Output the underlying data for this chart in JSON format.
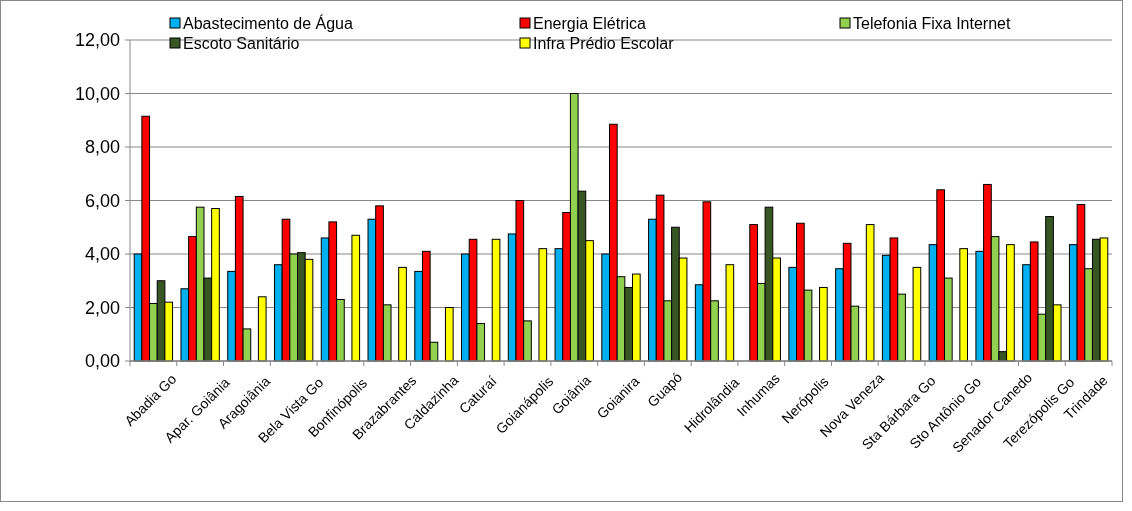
{
  "chart_data": {
    "type": "bar",
    "categories": [
      "Abadia Go",
      "Apar. Goiânia",
      "Aragoiânia",
      "Bela Vista Go",
      "Bonfinópolis",
      "Brazabrantes",
      "Caldazinha",
      "Caturaí",
      "Goianápolis",
      "Goiânia",
      "Goianira",
      "Guapó",
      "Hidrolândia",
      "Inhumas",
      "Nerópolis",
      "Nova Veneza",
      "Sta Bárbara Go",
      "Sto Antônio Go",
      "Senador Canedo",
      "Terezópolis Go",
      "Trindade"
    ],
    "series": [
      {
        "name": "Abastecimento de Água",
        "color": "#00b0f0",
        "values": [
          4.0,
          2.7,
          3.35,
          3.6,
          4.6,
          5.3,
          3.35,
          4.0,
          4.75,
          4.2,
          4.0,
          5.3,
          2.85,
          null,
          3.5,
          3.45,
          3.95,
          4.35,
          4.1,
          3.6,
          4.35
        ]
      },
      {
        "name": "Energia Elétrica",
        "color": "#ff0000",
        "values": [
          9.15,
          4.65,
          6.15,
          5.3,
          5.2,
          5.8,
          4.1,
          4.55,
          6.0,
          5.55,
          8.85,
          6.2,
          5.95,
          5.1,
          5.15,
          4.4,
          4.6,
          6.4,
          6.6,
          4.45,
          5.85
        ]
      },
      {
        "name": "Telefonia Fixa Internet",
        "color": "#92d050",
        "values": [
          2.15,
          5.75,
          1.2,
          4.0,
          2.3,
          2.1,
          0.7,
          1.4,
          1.5,
          10.0,
          3.15,
          2.25,
          2.25,
          2.9,
          2.65,
          2.05,
          2.5,
          3.1,
          4.65,
          1.75,
          3.45
        ]
      },
      {
        "name": "Escoto Sanitário",
        "color": "#375623",
        "values": [
          3.0,
          3.1,
          null,
          4.05,
          null,
          null,
          null,
          null,
          null,
          6.35,
          2.75,
          5.0,
          null,
          5.75,
          null,
          null,
          null,
          null,
          0.35,
          5.4,
          4.55
        ]
      },
      {
        "name": "Infra Prédio Escolar",
        "color": "#ffff00",
        "values": [
          2.2,
          5.7,
          2.4,
          3.8,
          4.7,
          3.5,
          2.0,
          4.55,
          4.2,
          4.5,
          3.25,
          3.85,
          3.6,
          3.85,
          2.75,
          5.1,
          3.5,
          4.2,
          4.35,
          2.1,
          4.6
        ]
      }
    ],
    "ylim": [
      0,
      12
    ],
    "yticks": [
      {
        "value": 0,
        "label": "0,00"
      },
      {
        "value": 2,
        "label": "2,00"
      },
      {
        "value": 4,
        "label": "4,00"
      },
      {
        "value": 6,
        "label": "6,00"
      },
      {
        "value": 8,
        "label": "8,00"
      },
      {
        "value": 10,
        "label": "10,00"
      },
      {
        "value": 12,
        "label": "12,00"
      }
    ],
    "grid": "y",
    "legend": "top"
  }
}
